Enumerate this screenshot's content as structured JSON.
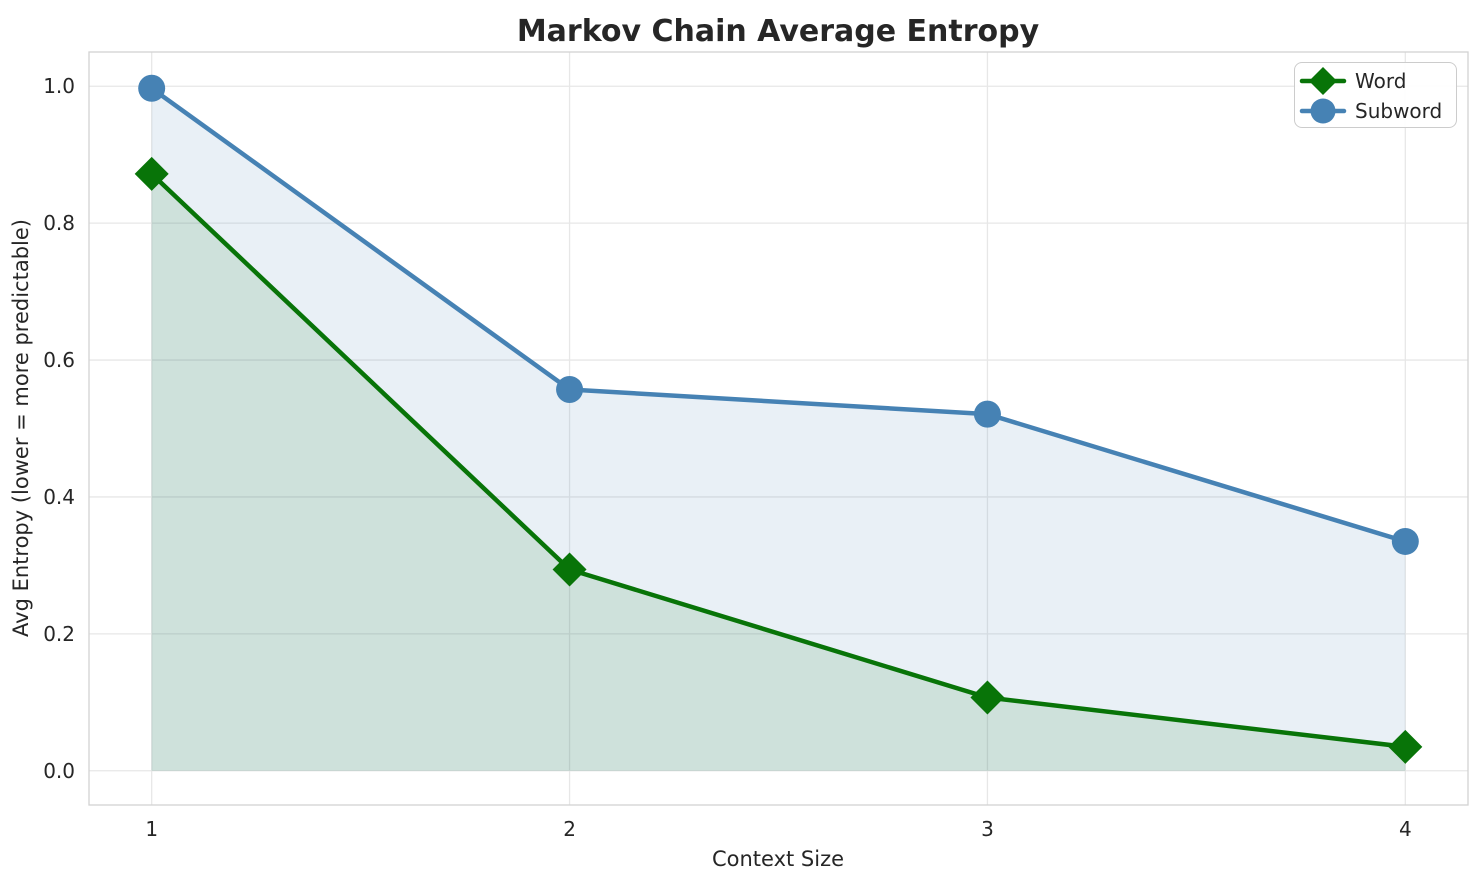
{
  "chart_data": {
    "type": "line",
    "title": "Markov Chain Average Entropy",
    "xlabel": "Context Size",
    "ylabel": "Avg Entropy (lower = more predictable)",
    "x": [
      1,
      2,
      3,
      4
    ],
    "series": [
      {
        "name": "Word",
        "marker": "diamond",
        "color": "#087408",
        "fill_opacity": 0.12,
        "values": [
          0.872,
          0.294,
          0.107,
          0.035
        ]
      },
      {
        "name": "Subword",
        "marker": "circle",
        "color": "#4682b4",
        "fill_opacity": 0.12,
        "values": [
          0.997,
          0.557,
          0.521,
          0.335
        ]
      }
    ],
    "xticks": [
      1,
      2,
      3,
      4
    ],
    "yticks": [
      0.0,
      0.2,
      0.4,
      0.6,
      0.8,
      1.0
    ],
    "xlim": [
      0.85,
      4.15
    ],
    "ylim": [
      -0.05,
      1.05
    ],
    "grid": true,
    "legend_position": "upper right",
    "colors": {
      "grid": "#e7e7e7",
      "spine": "#d2d2d2",
      "text": "#262626",
      "legend_border": "#cccccc"
    }
  }
}
